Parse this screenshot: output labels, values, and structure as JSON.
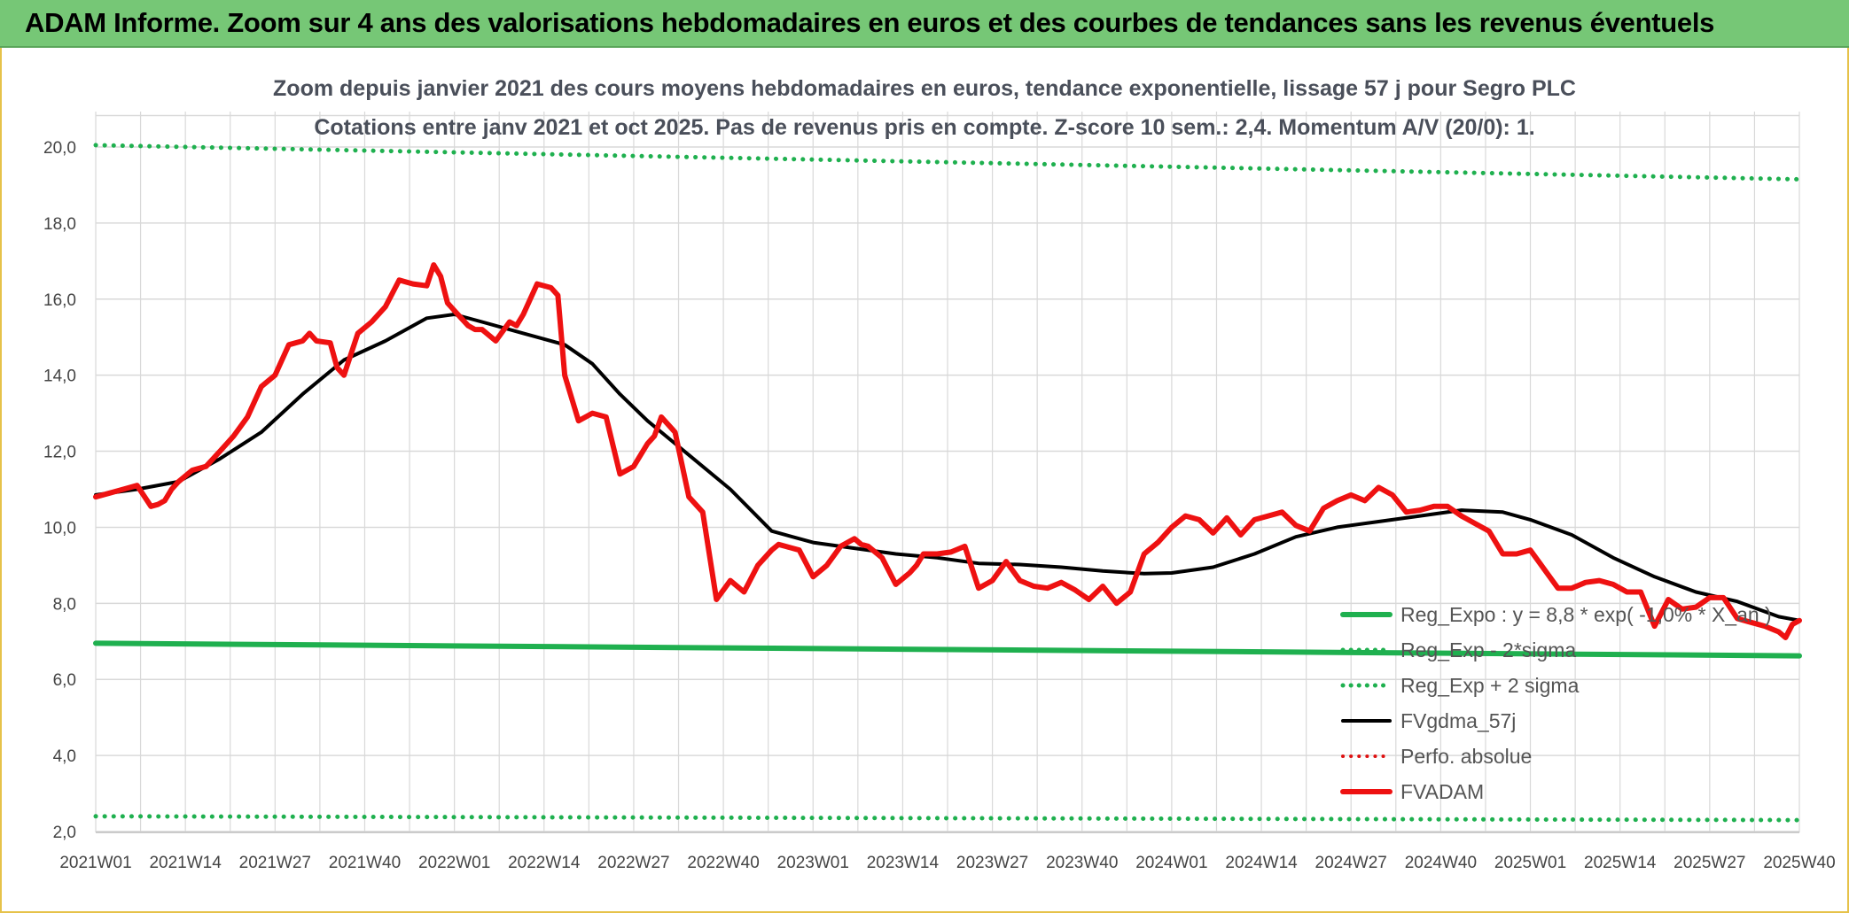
{
  "header": {
    "title": "ADAM Informe. Zoom sur 4 ans des valorisations hebdomadaires en euros et des courbes de tendances sans les revenus éventuels"
  },
  "chart_data": {
    "type": "line",
    "title_line1": "Zoom depuis janvier 2021 des cours moyens hebdomadaires en euros, tendance exponentielle, lissage 57 j pour Segro PLC",
    "title_line2": "Cotations entre janv 2021 et oct 2025. Pas de revenus pris en compte. Z-score 10 sem.: 2,4. Momentum A/V (20/0): 1.",
    "x_tick_labels": [
      "2021W01",
      "2021W14",
      "2021W27",
      "2021W40",
      "2022W01",
      "2022W14",
      "2022W27",
      "2022W40",
      "2023W01",
      "2023W14",
      "2023W27",
      "2023W40",
      "2024W01",
      "2024W14",
      "2024W27",
      "2024W40",
      "2025W01",
      "2025W14",
      "2025W27",
      "2025W40"
    ],
    "y_tick_labels": [
      "2,0",
      "4,0",
      "6,0",
      "8,0",
      "10,0",
      "12,0",
      "14,0",
      "16,0",
      "18,0",
      "20,0"
    ],
    "ylim": [
      2,
      20.5
    ],
    "grid": true,
    "legend_position": "bottom-right",
    "colors": {
      "green": "#1fb04f",
      "black": "#000000",
      "red": "#ee1111",
      "dotted_red": "#dd1111",
      "grid": "#d9d9d9"
    },
    "legend": [
      {
        "label": "Reg_Expo : y = 8,8 * exp( -1,0% * X_an )",
        "color": "#1fb04f",
        "style": "solid",
        "width": 6
      },
      {
        "label": "Reg_Exp - 2*sigma",
        "color": "#1fb04f",
        "style": "dotted",
        "width": 5
      },
      {
        "label": "Reg_Exp + 2 sigma",
        "color": "#1fb04f",
        "style": "dotted",
        "width": 5
      },
      {
        "label": "FVgdma_57j",
        "color": "#000000",
        "style": "solid",
        "width": 4
      },
      {
        "label": "Perfo. absolue",
        "color": "#dd1111",
        "style": "dotted",
        "width": 4
      },
      {
        "label": "FVADAM",
        "color": "#ee1111",
        "style": "solid",
        "width": 6
      }
    ],
    "series": [
      {
        "name": "Reg_Expo : y = 8,8 * exp( -1,0% * X_an )",
        "x": [
          0,
          247
        ],
        "values": [
          6.95,
          6.62
        ]
      },
      {
        "name": "Reg_Exp - 2*sigma",
        "x": [
          0,
          247
        ],
        "values": [
          2.4,
          2.3
        ]
      },
      {
        "name": "Reg_Exp + 2 sigma",
        "x": [
          0,
          247
        ],
        "values": [
          20.05,
          19.15
        ]
      },
      {
        "name": "FVgdma_57j",
        "x": [
          0,
          6,
          12,
          18,
          24,
          30,
          36,
          42,
          48,
          52,
          56,
          62,
          68,
          72,
          76,
          80,
          86,
          92,
          98,
          104,
          110,
          116,
          122,
          128,
          134,
          140,
          146,
          152,
          156,
          162,
          168,
          174,
          180,
          186,
          192,
          198,
          204,
          208,
          214,
          220,
          226,
          232,
          238,
          244,
          247
        ],
        "values": [
          10.85,
          11.0,
          11.2,
          11.8,
          12.5,
          13.5,
          14.4,
          14.9,
          15.5,
          15.6,
          15.4,
          15.1,
          14.8,
          14.3,
          13.5,
          12.8,
          11.9,
          11.0,
          9.9,
          9.6,
          9.45,
          9.3,
          9.2,
          9.05,
          9.02,
          8.95,
          8.85,
          8.78,
          8.8,
          8.95,
          9.3,
          9.75,
          10.0,
          10.15,
          10.3,
          10.45,
          10.4,
          10.2,
          9.8,
          9.2,
          8.7,
          8.3,
          8.05,
          7.65,
          7.55
        ]
      },
      {
        "name": "FVADAM",
        "x": [
          0,
          2,
          4,
          6,
          8,
          9,
          10,
          11,
          12,
          14,
          16,
          17,
          18,
          20,
          22,
          24,
          26,
          28,
          30,
          31,
          32,
          34,
          35,
          36,
          38,
          40,
          42,
          44,
          45,
          46,
          48,
          49,
          50,
          51,
          52,
          53,
          54,
          55,
          56,
          58,
          60,
          61,
          62,
          63,
          64,
          66,
          67,
          68,
          70,
          72,
          74,
          76,
          78,
          80,
          81,
          82,
          84,
          86,
          88,
          90,
          92,
          94,
          96,
          97,
          98,
          99,
          100,
          102,
          104,
          106,
          108,
          110,
          111,
          112,
          114,
          116,
          118,
          119,
          120,
          122,
          124,
          126,
          128,
          130,
          132,
          134,
          136,
          138,
          140,
          142,
          144,
          146,
          148,
          150,
          152,
          154,
          156,
          158,
          160,
          162,
          164,
          166,
          168,
          170,
          172,
          174,
          176,
          178,
          180,
          182,
          184,
          186,
          188,
          190,
          192,
          194,
          196,
          198,
          200,
          202,
          204,
          206,
          208,
          210,
          212,
          214,
          216,
          218,
          220,
          222,
          224,
          226,
          228,
          230,
          232,
          234,
          236,
          238,
          240,
          242,
          244,
          245,
          246,
          247
        ],
        "values": [
          10.8,
          10.9,
          11.0,
          11.1,
          10.55,
          10.6,
          10.7,
          11.0,
          11.2,
          11.5,
          11.6,
          11.8,
          12.0,
          12.4,
          12.9,
          13.7,
          14.0,
          14.8,
          14.9,
          15.1,
          14.9,
          14.85,
          14.2,
          14.0,
          15.1,
          15.4,
          15.8,
          16.5,
          16.45,
          16.4,
          16.35,
          16.9,
          16.6,
          15.9,
          15.7,
          15.5,
          15.3,
          15.2,
          15.2,
          14.9,
          15.4,
          15.3,
          15.6,
          16.0,
          16.4,
          16.3,
          16.1,
          14.0,
          12.8,
          13.0,
          12.9,
          11.4,
          11.6,
          12.2,
          12.4,
          12.9,
          12.5,
          10.8,
          10.4,
          8.1,
          8.6,
          8.3,
          9.0,
          9.2,
          9.4,
          9.55,
          9.5,
          9.4,
          8.7,
          9.0,
          9.5,
          9.7,
          9.55,
          9.5,
          9.2,
          8.5,
          8.8,
          9.0,
          9.3,
          9.3,
          9.35,
          9.5,
          8.4,
          8.6,
          9.1,
          8.6,
          8.45,
          8.4,
          8.55,
          8.35,
          8.1,
          8.45,
          8.0,
          8.3,
          9.3,
          9.6,
          10.0,
          10.3,
          10.2,
          9.85,
          10.25,
          9.8,
          10.2,
          10.3,
          10.4,
          10.05,
          9.9,
          10.5,
          10.7,
          10.85,
          10.7,
          11.05,
          10.85,
          10.4,
          10.45,
          10.55,
          10.55,
          10.3,
          10.1,
          9.9,
          9.3,
          9.3,
          9.4,
          8.9,
          8.4,
          8.4,
          8.55,
          8.6,
          8.5,
          8.3,
          8.3,
          7.4,
          8.1,
          7.85,
          7.9,
          8.15,
          8.15,
          7.6,
          7.5,
          7.4,
          7.25,
          7.1,
          7.45,
          7.55
        ]
      }
    ]
  }
}
